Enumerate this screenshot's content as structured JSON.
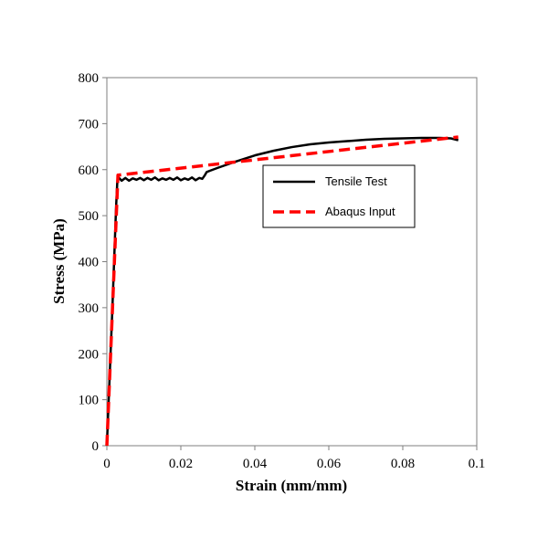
{
  "chart_data": {
    "type": "line",
    "title": "",
    "xlabel": "Strain (mm/mm)",
    "ylabel": "Stress (MPa)",
    "xlim": [
      0,
      0.1
    ],
    "ylim": [
      0,
      800
    ],
    "xticks": [
      0,
      0.02,
      0.04,
      0.06,
      0.08,
      0.1
    ],
    "xtick_labels": [
      "0",
      "0.02",
      "0.04",
      "0.06",
      "0.08",
      "0.1"
    ],
    "yticks": [
      0,
      100,
      200,
      300,
      400,
      500,
      600,
      700,
      800
    ],
    "ytick_labels": [
      "0",
      "100",
      "200",
      "300",
      "400",
      "500",
      "600",
      "700",
      "800"
    ],
    "grid": false,
    "legend_position": "right-center",
    "series": [
      {
        "name": "Tensile Test",
        "color": "#000000",
        "dash": "solid",
        "x": [
          0,
          0.0005,
          0.0015,
          0.0025,
          0.0028,
          0.003,
          0.0033,
          0.004,
          0.005,
          0.006,
          0.007,
          0.008,
          0.009,
          0.01,
          0.011,
          0.012,
          0.013,
          0.014,
          0.015,
          0.016,
          0.017,
          0.018,
          0.019,
          0.02,
          0.021,
          0.022,
          0.023,
          0.024,
          0.025,
          0.0258,
          0.0265,
          0.027,
          0.028,
          0.03,
          0.035,
          0.04,
          0.045,
          0.05,
          0.055,
          0.06,
          0.065,
          0.07,
          0.075,
          0.08,
          0.085,
          0.09,
          0.093,
          0.095
        ],
        "y": [
          0,
          100,
          300,
          520,
          570,
          585,
          582,
          576,
          582,
          576,
          581,
          578,
          582,
          577,
          582,
          578,
          583,
          577,
          581,
          578,
          582,
          578,
          583,
          577,
          581,
          578,
          583,
          577,
          582,
          580,
          588,
          595,
          598,
          604,
          618,
          631,
          641,
          649,
          655,
          659,
          662,
          665,
          667,
          668,
          669,
          669,
          668,
          664
        ]
      },
      {
        "name": "Abaqus Input",
        "color": "#ff0000",
        "dash": "dashed",
        "x": [
          0,
          0.003,
          0.095
        ],
        "y": [
          0,
          588,
          671
        ]
      }
    ]
  }
}
